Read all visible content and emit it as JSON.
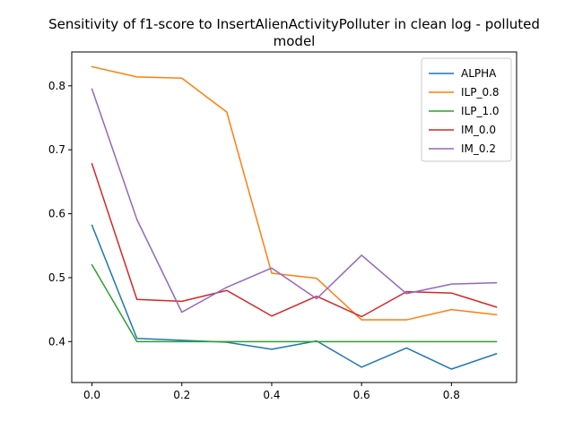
{
  "chart_data": {
    "type": "line",
    "title_lines": [
      "Sensitivity of f1-score to InsertAlienActivityPolluter in clean log - polluted",
      "model"
    ],
    "xlabel": "",
    "ylabel": "",
    "x": [
      0.0,
      0.1,
      0.2,
      0.3,
      0.4,
      0.5,
      0.6,
      0.7,
      0.8,
      0.9
    ],
    "xlim": [
      -0.045,
      0.945
    ],
    "ylim": [
      0.336,
      0.853
    ],
    "xticks": [
      0.0,
      0.2,
      0.4,
      0.6,
      0.8
    ],
    "xtick_labels": [
      "0.0",
      "0.2",
      "0.4",
      "0.6",
      "0.8"
    ],
    "yticks": [
      0.4,
      0.5,
      0.6,
      0.7,
      0.8
    ],
    "ytick_labels": [
      "0.4",
      "0.5",
      "0.6",
      "0.7",
      "0.8"
    ],
    "grid": false,
    "legend_position": "top-right",
    "series": [
      {
        "name": "ALPHA",
        "color": "#1f77b4",
        "values": [
          0.582,
          0.405,
          0.402,
          0.399,
          0.388,
          0.401,
          0.36,
          0.39,
          0.357,
          0.381
        ]
      },
      {
        "name": "ILP_0.8",
        "color": "#ff7f0e",
        "values": [
          0.83,
          0.814,
          0.812,
          0.759,
          0.507,
          0.499,
          0.434,
          0.434,
          0.45,
          0.442
        ]
      },
      {
        "name": "ILP_1.0",
        "color": "#2ca02c",
        "values": [
          0.52,
          0.4,
          0.4,
          0.4,
          0.4,
          0.4,
          0.4,
          0.4,
          0.4,
          0.4
        ]
      },
      {
        "name": "IM_0.0",
        "color": "#d62728",
        "values": [
          0.678,
          0.466,
          0.463,
          0.48,
          0.44,
          0.471,
          0.439,
          0.478,
          0.476,
          0.454
        ]
      },
      {
        "name": "IM_0.2",
        "color": "#9467bd",
        "values": [
          0.795,
          0.591,
          0.446,
          0.485,
          0.515,
          0.467,
          0.535,
          0.475,
          0.49,
          0.492
        ]
      }
    ]
  }
}
